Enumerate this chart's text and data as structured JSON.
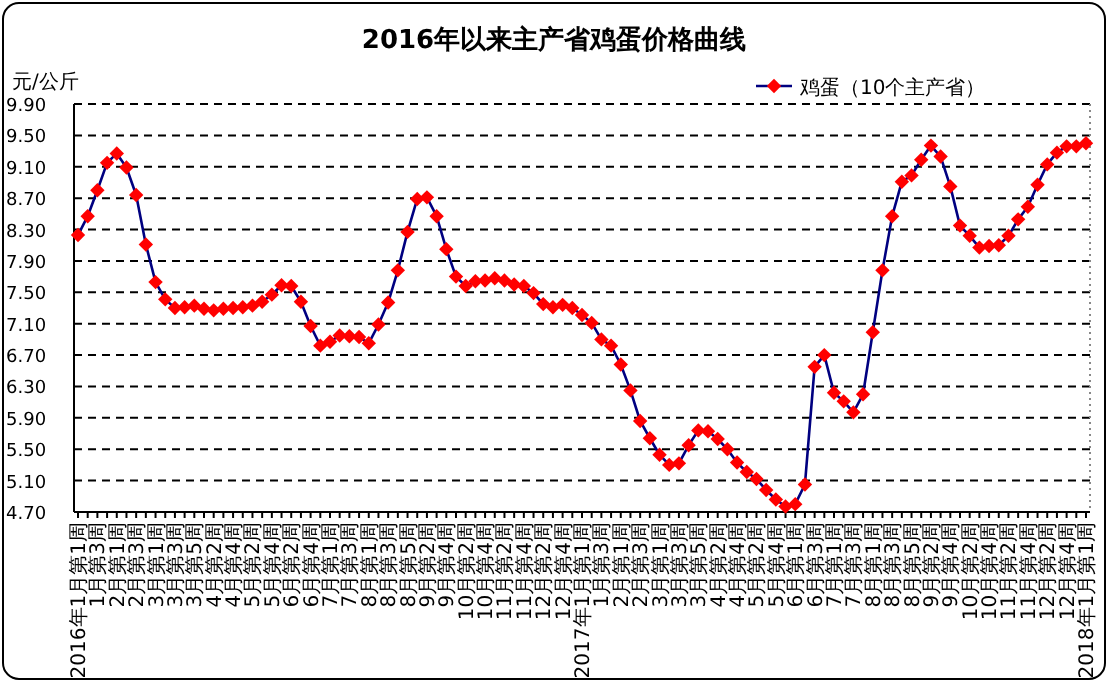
{
  "chart_data": {
    "type": "line",
    "title": "2016年以来主产省鸡蛋价格曲线",
    "ylabel": "元/公斤",
    "categories": [
      "2016年1月第1周",
      null,
      "1月第3周",
      null,
      "2月第1周",
      null,
      "2月第3周",
      null,
      "3月第1周",
      null,
      "3月第3周",
      null,
      "3月第5周",
      null,
      "4月第2周",
      null,
      "4月第4周",
      null,
      "5月第2周",
      null,
      "5月第4周",
      null,
      "6月第2周",
      null,
      "6月第4周",
      null,
      "7月第1周",
      null,
      "7月第3周",
      null,
      "8月第1周",
      null,
      "8月第3周",
      null,
      "8月第5周",
      null,
      "9月第2周",
      null,
      "9月第4周",
      null,
      "10月第2周",
      null,
      "10月第4周",
      null,
      "11月第2周",
      null,
      "11月第4周",
      null,
      "12月第2周",
      null,
      "12月第4周",
      null,
      "2017年1月第1周",
      null,
      "1月第3周",
      null,
      "2月第1周",
      null,
      "2月第3周",
      null,
      "3月第1周",
      null,
      "3月第3周",
      null,
      "3月第5周",
      null,
      "4月第2周",
      null,
      "4月第4周",
      null,
      "5月第2周",
      null,
      "5月第4周",
      null,
      "6月第1周",
      null,
      "6月第3周",
      null,
      "7月第1周",
      null,
      "7月第3周",
      null,
      "8月第1周",
      null,
      "8月第3周",
      null,
      "8月第5周",
      null,
      "9月第2周",
      null,
      "9月第4周",
      null,
      "10月第2周",
      null,
      "10月第4周",
      null,
      "11月第2周",
      null,
      "11月第4周",
      null,
      "12月第2周",
      null,
      "12月第4周",
      null,
      "2018年1月第1周"
    ],
    "series": [
      {
        "name": "鸡蛋（10个主产省）",
        "color": "#ff0000",
        "values": [
          8.23,
          8.47,
          8.8,
          9.15,
          9.27,
          9.09,
          8.74,
          8.11,
          7.63,
          7.41,
          7.3,
          7.31,
          7.33,
          7.29,
          7.27,
          7.29,
          7.3,
          7.31,
          7.33,
          7.38,
          7.47,
          7.59,
          7.58,
          7.38,
          7.07,
          6.82,
          6.87,
          6.95,
          6.94,
          6.93,
          6.85,
          7.09,
          7.37,
          7.78,
          8.27,
          8.69,
          8.71,
          8.47,
          8.05,
          7.7,
          7.58,
          7.64,
          7.65,
          7.68,
          7.65,
          7.6,
          7.58,
          7.49,
          7.35,
          7.31,
          7.34,
          7.3,
          7.21,
          7.11,
          6.9,
          6.82,
          6.58,
          6.25,
          5.86,
          5.64,
          5.43,
          5.3,
          5.32,
          5.55,
          5.74,
          5.73,
          5.63,
          5.5,
          5.33,
          5.21,
          5.12,
          4.98,
          4.86,
          4.77,
          4.8,
          5.05,
          6.55,
          6.7,
          6.22,
          6.11,
          5.97,
          6.2,
          6.99,
          7.78,
          8.47,
          8.91,
          8.99,
          9.19,
          9.37,
          9.23,
          8.85,
          8.35,
          8.22,
          8.07,
          8.09,
          8.1,
          8.22,
          8.43,
          8.59,
          8.87,
          9.13,
          9.28,
          9.36,
          9.36,
          9.4
        ]
      }
    ],
    "ylim": [
      4.7,
      9.9
    ],
    "yticks": [
      {
        "value": 4.7,
        "label": "4.70"
      },
      {
        "value": 5.1,
        "label": "5.10"
      },
      {
        "value": 5.5,
        "label": "5.50"
      },
      {
        "value": 5.9,
        "label": "5.90"
      },
      {
        "value": 6.3,
        "label": "6.30"
      },
      {
        "value": 6.7,
        "label": "6.70"
      },
      {
        "value": 7.1,
        "label": "7.10"
      },
      {
        "value": 7.5,
        "label": "7.50"
      },
      {
        "value": 7.9,
        "label": "7.90"
      },
      {
        "value": 8.3,
        "label": "8.30"
      },
      {
        "value": 8.7,
        "label": "8.70"
      },
      {
        "value": 9.1,
        "label": "9.10"
      },
      {
        "value": 9.5,
        "label": "9.50"
      },
      {
        "value": 9.9,
        "label": "9.90"
      }
    ],
    "grid": "y",
    "legend": "top right",
    "marker": "diamond",
    "line_style": "solid"
  }
}
